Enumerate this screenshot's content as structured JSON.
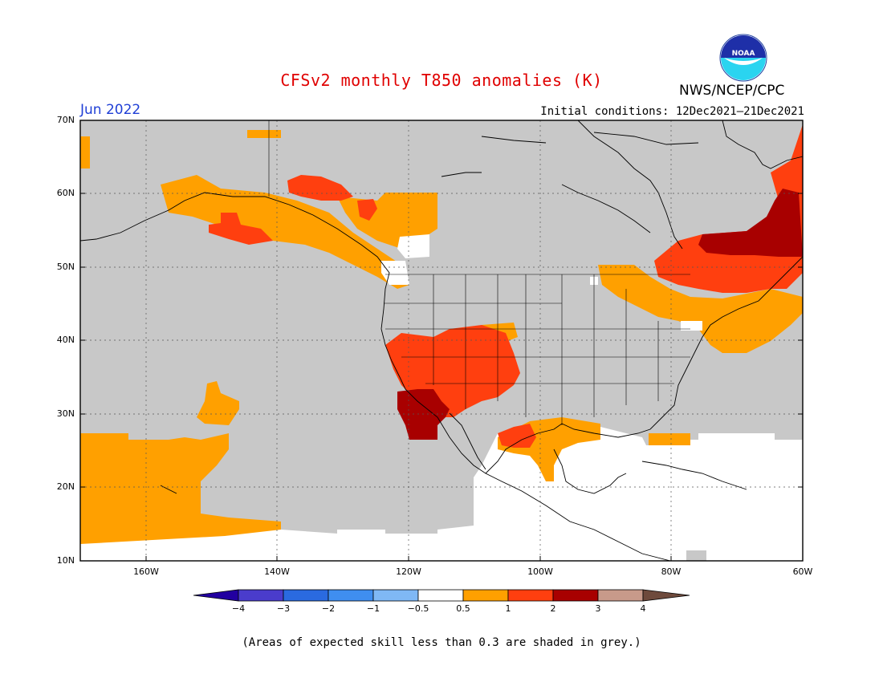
{
  "title": "CFSv2 monthly T850 anomalies (K)",
  "month": "Jun 2022",
  "init_conditions": "Initial conditions: 12Dec2021–21Dec2021",
  "agency": "NWS/NCEP/CPC",
  "logo_text": "NOAA",
  "lat_labels": [
    "70N",
    "60N",
    "50N",
    "40N",
    "30N",
    "20N",
    "10N"
  ],
  "lon_labels": [
    "160W",
    "140W",
    "120W",
    "100W",
    "80W",
    "60W"
  ],
  "colorbar": {
    "labels": [
      "−4",
      "−3",
      "−2",
      "−1",
      "−0.5",
      "0.5",
      "1",
      "2",
      "3",
      "4"
    ],
    "colors": [
      "#2200a0",
      "#4a3ccc",
      "#2a6ae0",
      "#3f8ef0",
      "#7fb8f5",
      "#ffffff",
      "#ffa000",
      "#ff3f0f",
      "#a80000",
      "#c89a8a",
      "#6e4a3c"
    ]
  },
  "footnote": "(Areas of expected skill less than 0.3 are shaded in grey.)",
  "colors": {
    "grey_mask": "#c8c8c8",
    "anom_0_5_to_1": "#ffa000",
    "anom_1_to_2": "#ff3f0f",
    "anom_2_to_3": "#a80000"
  }
}
